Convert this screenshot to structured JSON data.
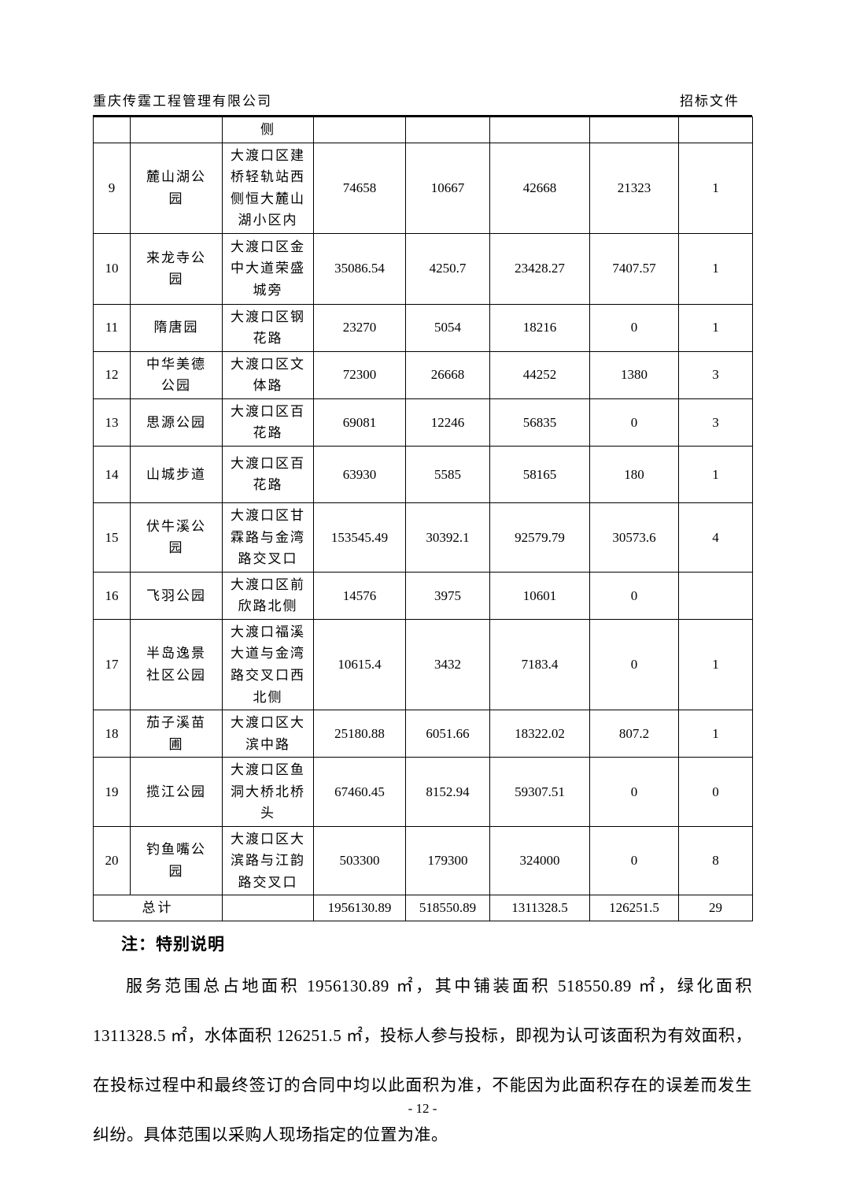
{
  "page": {
    "header_left": "重庆传霆工程管理有限公司",
    "header_right": "招标文件",
    "footer_page": "- 12 -"
  },
  "table": {
    "carryover_row": {
      "location": "侧"
    },
    "rows": [
      {
        "no": "9",
        "name": "麓山湖公园",
        "location": "大渡口区建桥轻轨站西侧恒大麓山湖小区内",
        "total": "74658",
        "paved": "10667",
        "green": "42668",
        "water": "21323",
        "count": "1"
      },
      {
        "no": "10",
        "name": "来龙寺公园",
        "location": "大渡口区金中大道荣盛城旁",
        "total": "35086.54",
        "paved": "4250.7",
        "green": "23428.27",
        "water": "7407.57",
        "count": "1"
      },
      {
        "no": "11",
        "name": "隋唐园",
        "location": "大渡口区钢花路",
        "total": "23270",
        "paved": "5054",
        "green": "18216",
        "water": "0",
        "count": "1"
      },
      {
        "no": "12",
        "name": "中华美德公园",
        "location": "大渡口区文体路",
        "total": "72300",
        "paved": "26668",
        "green": "44252",
        "water": "1380",
        "count": "3"
      },
      {
        "no": "13",
        "name": "思源公园",
        "location": "大渡口区百花路",
        "total": "69081",
        "paved": "12246",
        "green": "56835",
        "water": "0",
        "count": "3"
      },
      {
        "no": "14",
        "name": "山城步道",
        "location": "大渡口区百花路",
        "total": "63930",
        "paved": "5585",
        "green": "58165",
        "water": "180",
        "count": "1"
      },
      {
        "no": "15",
        "name": "伏牛溪公园",
        "location": "大渡口区甘霖路与金湾路交叉口",
        "total": "153545.49",
        "paved": "30392.1",
        "green": "92579.79",
        "water": "30573.6",
        "count": "4"
      },
      {
        "no": "16",
        "name": "飞羽公园",
        "location": "大渡口区前欣路北侧",
        "total": "14576",
        "paved": "3975",
        "green": "10601",
        "water": "0",
        "count": ""
      },
      {
        "no": "17",
        "name": "半岛逸景社区公园",
        "location": "大渡口福溪大道与金湾路交叉口西北侧",
        "total": "10615.4",
        "paved": "3432",
        "green": "7183.4",
        "water": "0",
        "count": "1"
      },
      {
        "no": "18",
        "name": "茄子溪苗圃",
        "location": "大渡口区大滨中路",
        "total": "25180.88",
        "paved": "6051.66",
        "green": "18322.02",
        "water": "807.2",
        "count": "1"
      },
      {
        "no": "19",
        "name": "揽江公园",
        "location": "大渡口区鱼洞大桥北桥头",
        "total": "67460.45",
        "paved": "8152.94",
        "green": "59307.51",
        "water": "0",
        "count": "0"
      },
      {
        "no": "20",
        "name": "钓鱼嘴公园",
        "location": "大渡口区大滨路与江韵路交叉口",
        "total": "503300",
        "paved": "179300",
        "green": "324000",
        "water": "0",
        "count": "8"
      }
    ],
    "total_row": {
      "label": "总计",
      "total": "1956130.89",
      "paved": "518550.89",
      "green": "1311328.5",
      "water": "126251.5",
      "count": "29"
    }
  },
  "note": {
    "title": "注：特别说明",
    "paragraph": "服务范围总占地面积 1956130.89 ㎡，其中铺装面积 518550.89 ㎡，绿化面积 1311328.5 ㎡，水体面积 126251.5 ㎡，投标人参与投标，即视为认可该面积为有效面积，在投标过程中和最终签订的合同中均以此面积为准，不能因为此面积存在的误差而发生纠纷。具体范围以采购人现场指定的位置为准。"
  }
}
